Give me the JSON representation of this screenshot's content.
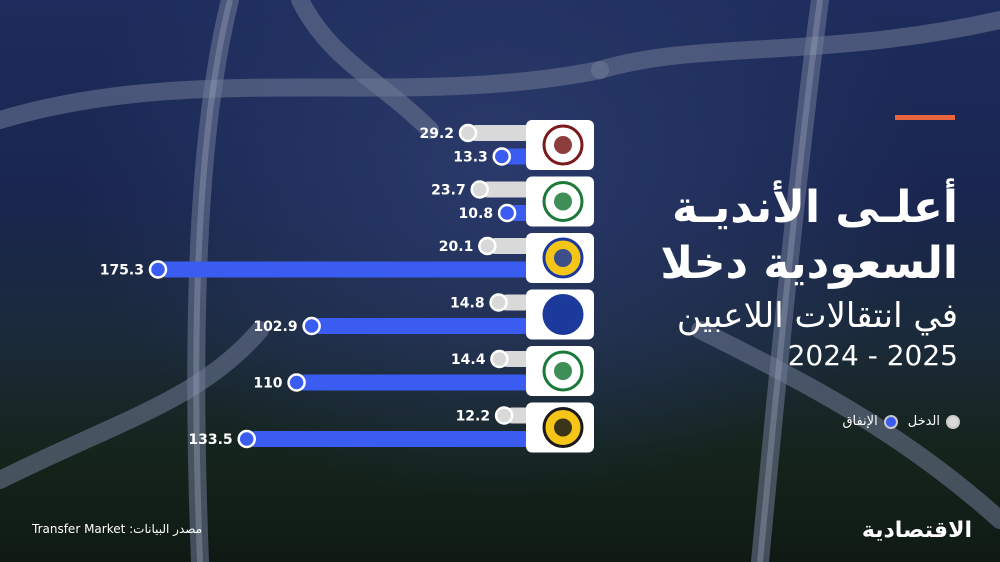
{
  "title": {
    "line1": "أعلـى الأنديـة",
    "line2": "السعودية دخلا",
    "line3": "في انتقالات اللاعبين",
    "line4": "2024 - 2025"
  },
  "legend": {
    "income_label": "الدخل",
    "spending_label": "الإنفاق"
  },
  "source": "مصدر البيانات: Transfer Market",
  "brand": "الاقتصادية",
  "colors": {
    "income": "#d9d9d9",
    "spending": "#3a5cf0",
    "accent": "#e8643c",
    "logo_panel": "#ffffff"
  },
  "club_logos": [
    "shabab-logo",
    "ettifaq-logo",
    "nassr-logo",
    "hilal-logo",
    "ahli-logo",
    "ittihad-logo"
  ],
  "chart_data": {
    "type": "bar",
    "orientation": "horizontal",
    "categories": [
      "",
      "",
      "",
      "",
      "",
      ""
    ],
    "series": [
      {
        "name": "الدخل",
        "values": [
          29.2,
          23.7,
          20.1,
          14.8,
          14.4,
          12.2
        ]
      },
      {
        "name": "الإنفاق",
        "values": [
          13.3,
          10.8,
          175.3,
          102.9,
          110,
          133.5
        ]
      }
    ],
    "value_labels": [
      [
        "29.2",
        "23.7",
        "20.1",
        "14.8",
        "14.4",
        "12.2"
      ],
      [
        "13.3",
        "10.8",
        "175.3",
        "102.9",
        "110",
        "133.5"
      ]
    ],
    "xlim": [
      0,
      175.3
    ],
    "grid": false,
    "legend_position": "right"
  }
}
